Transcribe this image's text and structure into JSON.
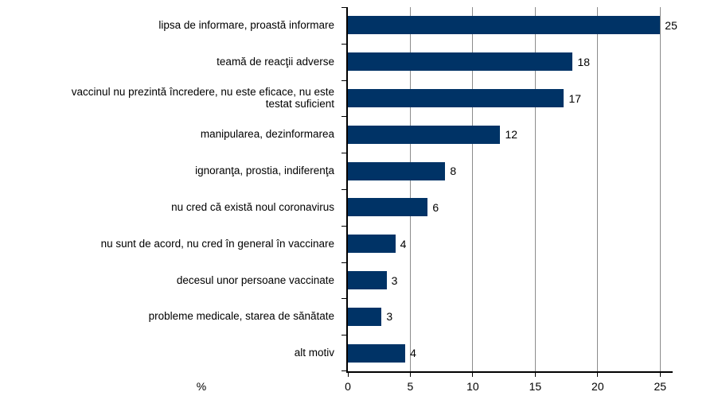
{
  "chart_data": {
    "type": "bar",
    "orientation": "horizontal",
    "title": "",
    "xlabel": "%",
    "ylabel": "",
    "categories": [
      "lipsa de informare, proastă informare",
      "teamă de reacţii adverse",
      "vaccinul nu prezintă încredere, nu este eficace, nu este\ntestat suficient",
      "manipularea, dezinformarea",
      "ignoranţa, prostia, indiferenţa",
      "nu cred că există noul coronavirus",
      "nu sunt de acord, nu cred în general în vaccinare",
      "decesul unor persoane vaccinate",
      "probleme medicale, starea de sănătate",
      "alt motiv"
    ],
    "values": [
      25,
      18,
      17,
      12,
      8,
      6,
      4,
      3,
      3,
      4
    ],
    "bar_lengths_estimated": [
      25.0,
      18.0,
      17.3,
      12.2,
      7.8,
      6.4,
      3.8,
      3.1,
      2.7,
      4.6
    ],
    "x_ticks": [
      0,
      5,
      10,
      15,
      20,
      25
    ],
    "xlim": [
      0,
      26
    ],
    "grid": "vertical gridlines at ticks",
    "legend": "none",
    "colors": {
      "bar": "#003366",
      "gridline": "#8c8c8c",
      "axis": "#000000",
      "text": "#000000",
      "background": "#ffffff"
    }
  }
}
